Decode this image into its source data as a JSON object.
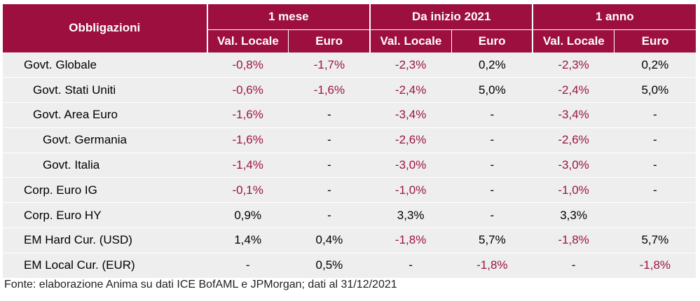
{
  "table": {
    "corner_label": "Obbligazioni",
    "groups": [
      "1 mese",
      "Da inizio 2021",
      "1 anno"
    ],
    "subheaders": [
      "Val. Locale",
      "Euro",
      "Val. Locale",
      "Euro",
      "Val. Locale",
      "Euro"
    ],
    "rows": [
      {
        "name": "Govt. Globale",
        "values": [
          "-0,8%",
          "-1,7%",
          "-2,3%",
          "0,2%",
          "-2,3%",
          "0,2%"
        ]
      },
      {
        "name": "Govt. Stati Uniti",
        "values": [
          "-0,6%",
          "-1,6%",
          "-2,4%",
          "5,0%",
          "-2,4%",
          "5,0%"
        ]
      },
      {
        "name": "Govt. Area Euro",
        "values": [
          "-1,6%",
          "-",
          "-3,4%",
          "-",
          "-3,4%",
          "-"
        ]
      },
      {
        "name": "Govt. Germania",
        "values": [
          "-1,6%",
          "-",
          "-2,6%",
          "-",
          "-2,6%",
          "-"
        ]
      },
      {
        "name": "Govt. Italia",
        "values": [
          "-1,4%",
          "-",
          "-3,0%",
          "-",
          "-3,0%",
          "-"
        ]
      },
      {
        "name": "Corp. Euro IG",
        "values": [
          "-0,1%",
          "-",
          "-1,0%",
          "-",
          "-1,0%",
          "-"
        ]
      },
      {
        "name": "Corp. Euro HY",
        "values": [
          "0,9%",
          "-",
          "3,3%",
          "-",
          "3,3%",
          ""
        ]
      },
      {
        "name": "EM Hard Cur. (USD)",
        "values": [
          "1,4%",
          "0,4%",
          "-1,8%",
          "5,7%",
          "-1,8%",
          "5,7%"
        ]
      },
      {
        "name": "EM Local Cur. (EUR)",
        "values": [
          "-",
          "0,5%",
          "-",
          "-1,8%",
          "-",
          "-1,8%"
        ]
      }
    ]
  },
  "footnote": "Fonte: elaborazione Anima su dati ICE BofAML e JPMorgan; dati al 31/12/2021",
  "colors": {
    "header_bg": "#9c0f3f",
    "negative": "#9c1346",
    "row_alt": "#eeeeee"
  }
}
